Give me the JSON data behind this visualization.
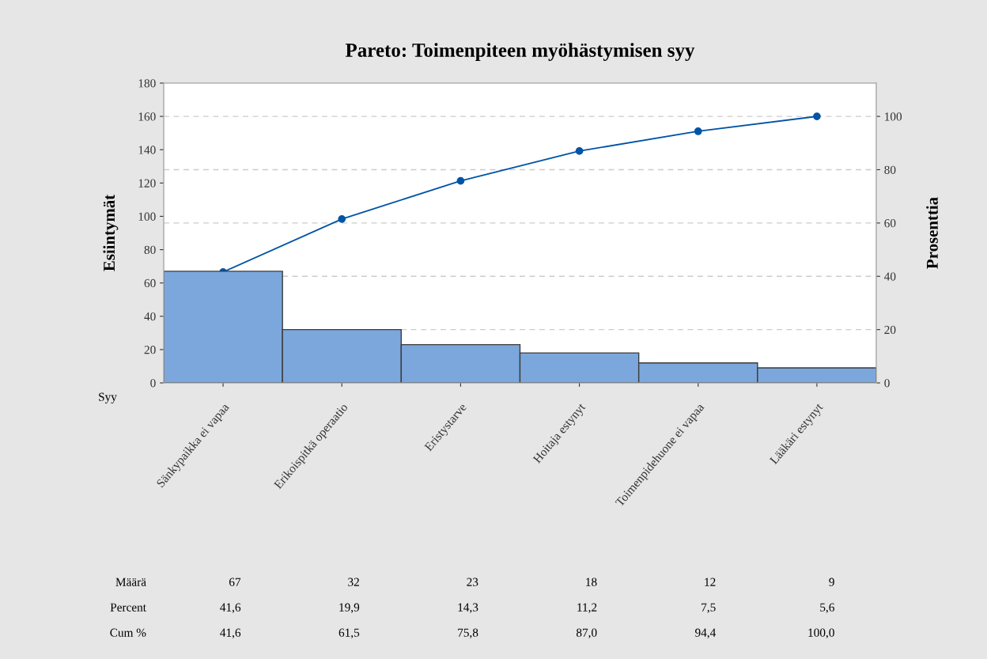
{
  "chart_data": {
    "type": "bar",
    "title": "Pareto: Toimenpiteen myöhästymisen syy",
    "xlabel": "Syy",
    "ylabel": "Esiintymät",
    "y2label": "Prosenttia",
    "categories": [
      "Sänkypaikka ei vapaa",
      "Erikoispitkä operaatio",
      "Eristystarve",
      "Hoitaja estynyt",
      "Toimenpidehuone ei vapaa",
      "Lääkäri estynyt"
    ],
    "series": [
      {
        "color": "#7ba7dc",
        "values": [
          67,
          32,
          23,
          18,
          12,
          9
        ],
        "value_labels": [
          "67",
          "32",
          "23",
          "18",
          "12",
          "9"
        ]
      },
      {
        "type": "line",
        "axis": "y2",
        "color": "#0054a6",
        "values": [
          41.6,
          61.5,
          75.8,
          87.0,
          94.4,
          100.0
        ],
        "value_labels": [
          "41,6",
          "61,5",
          "75,8",
          "87,0",
          "94,4",
          "100,0"
        ]
      }
    ],
    "annotations": [
      "Määrä",
      "Percent",
      "Cum %",
      "41,6",
      "19,9",
      "14,3",
      "11,2",
      "7,5",
      "5,6"
    ],
    "ylim": [
      0,
      180
    ],
    "yticks": [
      0,
      20,
      40,
      60,
      80,
      100,
      120,
      140,
      160,
      180
    ],
    "y2lim": [
      0,
      112.5
    ],
    "y2ticks": [
      0,
      20,
      40,
      60,
      80,
      100
    ],
    "grid": true,
    "marker": "circle",
    "line_style": "solid"
  }
}
